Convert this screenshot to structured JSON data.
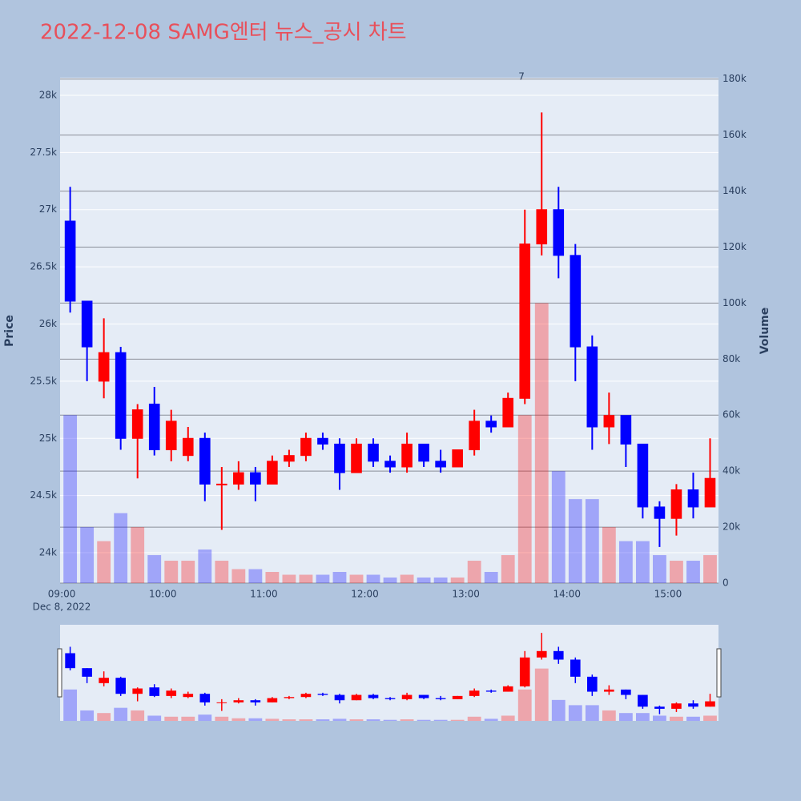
{
  "chart_data": {
    "type": "candlestick",
    "title": "2022-12-08 SAMG엔터 뉴스_공시 차트",
    "y_label": "Price",
    "y2_label": "Volume",
    "x_date_label": "Dec 8, 2022",
    "x": [
      "09:00",
      "09:10",
      "09:20",
      "09:30",
      "09:40",
      "09:50",
      "10:00",
      "10:10",
      "10:20",
      "10:30",
      "10:40",
      "10:50",
      "11:00",
      "11:10",
      "11:20",
      "11:30",
      "11:40",
      "11:50",
      "12:00",
      "12:10",
      "12:20",
      "12:30",
      "12:40",
      "12:50",
      "13:00",
      "13:10",
      "13:20",
      "13:30",
      "13:40",
      "13:50",
      "14:00",
      "14:10",
      "14:20",
      "14:30",
      "14:40",
      "14:50",
      "15:00",
      "15:10",
      "15:20"
    ],
    "open": [
      26900,
      26200,
      25500,
      25750,
      25000,
      25300,
      24900,
      24850,
      25000,
      24600,
      24600,
      24700,
      24600,
      24800,
      24850,
      25000,
      24950,
      24700,
      24950,
      24800,
      24750,
      24950,
      24800,
      24750,
      24900,
      25150,
      25100,
      25350,
      26700,
      27000,
      26600,
      25800,
      25100,
      25200,
      24950,
      24400,
      24300,
      24550,
      24400
    ],
    "high": [
      27200,
      26200,
      26050,
      25800,
      25300,
      25450,
      25250,
      25100,
      25050,
      24750,
      24800,
      24750,
      24850,
      24900,
      25050,
      25050,
      25000,
      25000,
      25000,
      24850,
      25050,
      24950,
      24900,
      24900,
      25250,
      25200,
      25400,
      27000,
      27850,
      27200,
      26700,
      25900,
      25400,
      25200,
      24950,
      24450,
      24600,
      24700,
      25000
    ],
    "low": [
      26100,
      25500,
      25350,
      24900,
      24650,
      24850,
      24800,
      24800,
      24450,
      24200,
      24550,
      24450,
      24600,
      24750,
      24800,
      24900,
      24550,
      24700,
      24750,
      24700,
      24700,
      24750,
      24700,
      24750,
      24850,
      25050,
      25100,
      25300,
      26600,
      26400,
      25500,
      24900,
      24950,
      24750,
      24300,
      24050,
      24150,
      24300,
      24400
    ],
    "close": [
      26200,
      25800,
      25750,
      25000,
      25250,
      24900,
      25150,
      25000,
      24600,
      24600,
      24700,
      24600,
      24800,
      24850,
      25000,
      24950,
      24700,
      24950,
      24800,
      24750,
      24950,
      24800,
      24750,
      24900,
      25150,
      25100,
      25350,
      26700,
      27000,
      26600,
      25800,
      25100,
      25200,
      24950,
      24400,
      24300,
      24550,
      24400,
      24650
    ],
    "volume": [
      60000,
      20000,
      15000,
      25000,
      20000,
      10000,
      8000,
      8000,
      12000,
      8000,
      5000,
      5000,
      4000,
      3000,
      3000,
      3000,
      4000,
      3000,
      3000,
      2000,
      3000,
      2000,
      2000,
      2000,
      8000,
      4000,
      10000,
      60000,
      100000,
      40000,
      30000,
      30000,
      20000,
      15000,
      15000,
      10000,
      8000,
      8000,
      10000
    ],
    "increasing_color": "#ff0000",
    "decreasing_color": "#0000ff",
    "xlim": [
      "08:59",
      "15:30"
    ],
    "xticks": [
      "09:00",
      "10:00",
      "11:00",
      "12:00",
      "13:00",
      "14:00",
      "15:00"
    ],
    "ylim": [
      23734,
      28154
    ],
    "yticks": [
      {
        "value": 24000,
        "label": "24k"
      },
      {
        "value": 24500,
        "label": "24.5k"
      },
      {
        "value": 25000,
        "label": "25k"
      },
      {
        "value": 25500,
        "label": "25.5k"
      },
      {
        "value": 26000,
        "label": "26k"
      },
      {
        "value": 26500,
        "label": "26.5k"
      },
      {
        "value": 27000,
        "label": "27k"
      },
      {
        "value": 27500,
        "label": "27.5k"
      },
      {
        "value": 28000,
        "label": "28k"
      }
    ],
    "y2lim": [
      0,
      180500
    ],
    "y2ticks": [
      0,
      {
        "value": 20000,
        "label": "20k"
      },
      {
        "value": 40000,
        "label": "40k"
      },
      {
        "value": 60000,
        "label": "60k"
      },
      {
        "value": 80000,
        "label": "80k"
      },
      {
        "value": 100000,
        "label": "100k"
      },
      {
        "value": 120000,
        "label": "120k"
      },
      {
        "value": 140000,
        "label": "140k"
      },
      {
        "value": 160000,
        "label": "160k"
      },
      {
        "value": 180000,
        "label": "180k"
      }
    ],
    "grid": true,
    "y2grid": true,
    "annotation": {
      "text": "7",
      "x": "13:33"
    },
    "rangeslider": true
  }
}
